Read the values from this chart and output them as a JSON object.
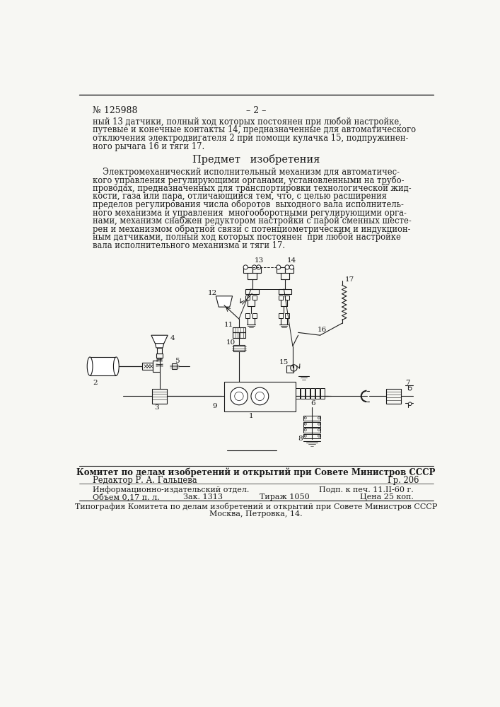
{
  "bg": "#f7f7f3",
  "lc": "#1a1a1a",
  "patent_number": "№ 125988",
  "page_number": "– 2 –",
  "top_line1": "ный 13 датчики, полный ход которых постоянен при любой настройке,",
  "top_line2": "путевые и конечные контакты 14, предназначенные для автоматического",
  "top_line3": "отключения электродвигателя 2 при помощи кулачка 15, подпружинен-",
  "top_line4": "ного рычага 16 и тяги 17.",
  "section_title": "Предмет   изобретения",
  "body_line1": "Электромеханический исполнительный механизм для автоматичес-",
  "body_line2": "кого управления регулирующими органами, установленными на трубо-",
  "body_line3": "проводах, предназначенных для транспортировки технологической жид-",
  "body_line4": "кости, газа или пара, отличающийся тем, что, с целью расширения",
  "body_line5": "пределов регулирования числа оборотов  выходного вала исполнитель-",
  "body_line6": "ного механизма и управления  многооборотными регулирующими орга-",
  "body_line7": "нами, механизм снабжен редуктором настройки с парой сменных шесте-",
  "body_line8": "рен и механизмом обратной связи с потенциометрическим и индукцион-",
  "body_line9": "ным датчиками, полный ход которых постоянен  при любой настройке",
  "body_line10": "вала исполнительного механизма и тяги 17.",
  "footer_bold": "Комитет по делам изобретений и открытий при Совете Министров СССР",
  "editor_line": "Редактор Р. А. Гальцева",
  "gr_line": "Гр. 206",
  "info_line1": "Информационно-издательский отдел.",
  "info_podp": "Подп. к печ. 11.II-60 г.",
  "info_line2": "Объем 0,17 п. л.",
  "info_zak": "Зак. 1313",
  "info_tirazh": "Тираж 1050",
  "info_cena": "Цена 25 коп.",
  "tipogrfiya_line1": "Типография Комитета по делам изобретений и открытий при Совете Министров СССР",
  "tipogrfiya_line2": "Москва, Петровка, 14."
}
